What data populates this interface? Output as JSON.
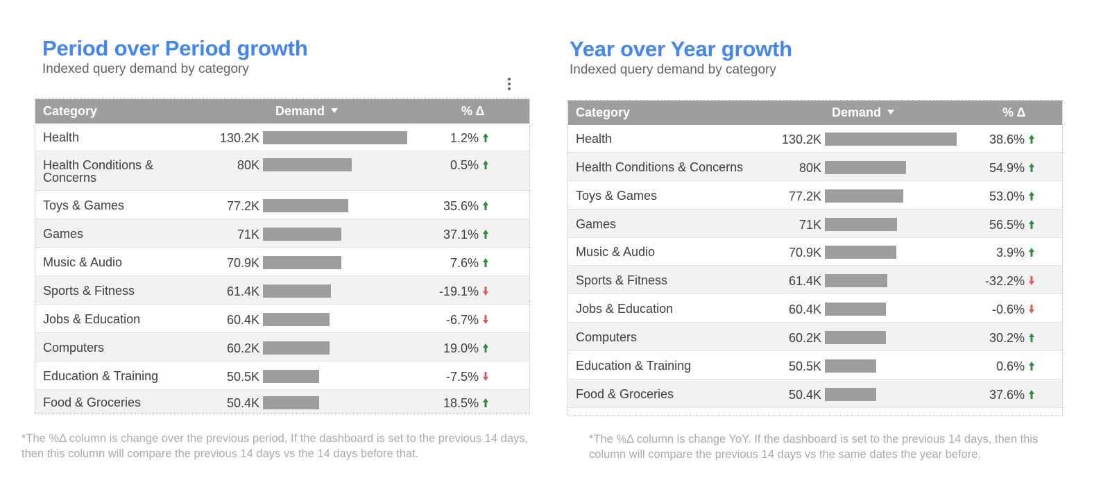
{
  "colors": {
    "title": "#4285f4",
    "header_bg": "#9e9e9e",
    "bar": "#9e9e9e",
    "up": "#2e8b3c",
    "down": "#e05a4f"
  },
  "left": {
    "title": "Period over Period growth",
    "subtitle": "Indexed query demand by category",
    "headers": {
      "category": "Category",
      "demand": "Demand",
      "pct": "% Δ"
    },
    "sort_icon": "sort-descending-icon",
    "menu_icon": "more-vert-icon",
    "rows": [
      {
        "category": "Health",
        "demand": "130.2K",
        "value": 130.2,
        "pct": "1.2%",
        "direction": "up"
      },
      {
        "category": "Health Conditions & Concerns",
        "demand": "80K",
        "value": 80,
        "pct": "0.5%",
        "direction": "up"
      },
      {
        "category": "Toys & Games",
        "demand": "77.2K",
        "value": 77.2,
        "pct": "35.6%",
        "direction": "up"
      },
      {
        "category": "Games",
        "demand": "71K",
        "value": 71,
        "pct": "37.1%",
        "direction": "up"
      },
      {
        "category": "Music & Audio",
        "demand": "70.9K",
        "value": 70.9,
        "pct": "7.6%",
        "direction": "up"
      },
      {
        "category": "Sports & Fitness",
        "demand": "61.4K",
        "value": 61.4,
        "pct": "-19.1%",
        "direction": "down"
      },
      {
        "category": "Jobs & Education",
        "demand": "60.4K",
        "value": 60.4,
        "pct": "-6.7%",
        "direction": "down"
      },
      {
        "category": "Computers",
        "demand": "60.2K",
        "value": 60.2,
        "pct": "19.0%",
        "direction": "up"
      },
      {
        "category": "Education & Training",
        "demand": "50.5K",
        "value": 50.5,
        "pct": "-7.5%",
        "direction": "down"
      },
      {
        "category": "Food & Groceries",
        "demand": "50.4K",
        "value": 50.4,
        "pct": "18.5%",
        "direction": "up"
      }
    ],
    "footnote": "*The %Δ column is change over the previous period. If the dashboard is set to the previous 14 days, then this column will compare the previous 14 days vs the 14 days before that."
  },
  "right": {
    "title": "Year over Year growth",
    "subtitle": "Indexed query demand by category",
    "headers": {
      "category": "Category",
      "demand": "Demand",
      "pct": "% Δ"
    },
    "sort_icon": "sort-descending-icon",
    "rows": [
      {
        "category": "Health",
        "demand": "130.2K",
        "value": 130.2,
        "pct": "38.6%",
        "direction": "up"
      },
      {
        "category": "Health Conditions & Concerns",
        "demand": "80K",
        "value": 80,
        "pct": "54.9%",
        "direction": "up"
      },
      {
        "category": "Toys & Games",
        "demand": "77.2K",
        "value": 77.2,
        "pct": "53.0%",
        "direction": "up"
      },
      {
        "category": "Games",
        "demand": "71K",
        "value": 71,
        "pct": "56.5%",
        "direction": "up"
      },
      {
        "category": "Music & Audio",
        "demand": "70.9K",
        "value": 70.9,
        "pct": "3.9%",
        "direction": "up"
      },
      {
        "category": "Sports & Fitness",
        "demand": "61.4K",
        "value": 61.4,
        "pct": "-32.2%",
        "direction": "down"
      },
      {
        "category": "Jobs & Education",
        "demand": "60.4K",
        "value": 60.4,
        "pct": "-0.6%",
        "direction": "down"
      },
      {
        "category": "Computers",
        "demand": "60.2K",
        "value": 60.2,
        "pct": "30.2%",
        "direction": "up"
      },
      {
        "category": "Education & Training",
        "demand": "50.5K",
        "value": 50.5,
        "pct": "0.6%",
        "direction": "up"
      },
      {
        "category": "Food & Groceries",
        "demand": "50.4K",
        "value": 50.4,
        "pct": "37.6%",
        "direction": "up"
      }
    ],
    "footnote": "*The %Δ column is change YoY. If the dashboard is set to the previous 14 days, then this column will compare the previous 14 days vs the same dates the year before."
  }
}
